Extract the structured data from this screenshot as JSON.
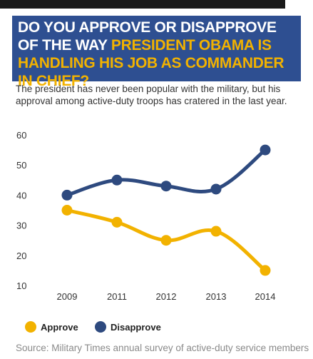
{
  "headline": {
    "part1": "DO YOU APPROVE OR DISAPPROVE OF THE WAY ",
    "part2": "PRESIDENT OBAMA IS HANDLING HIS JOB AS COMMANDER IN CHIEF?"
  },
  "subtitle": "The president has never been popular with the military, but his approval among active-duty troops has cratered in the last year.",
  "source": "Source: Military Times annual survey of active-duty service members",
  "colors": {
    "headline_bg": "#2e4f91",
    "highlight": "#f2b200",
    "approve": "#f2b200",
    "disapprove": "#2e4a7f"
  },
  "chart_data": {
    "type": "line",
    "categories": [
      "2009",
      "2011",
      "2012",
      "2013",
      "2014"
    ],
    "series": [
      {
        "name": "Approve",
        "color": "#f2b200",
        "values": [
          35,
          31,
          25,
          28,
          15
        ]
      },
      {
        "name": "Disapprove",
        "color": "#2e4a7f",
        "values": [
          40,
          45,
          43,
          42,
          55
        ]
      }
    ],
    "yticks": [
      "60",
      "50",
      "40",
      "30",
      "20",
      "10"
    ],
    "ylim": [
      10,
      60
    ],
    "grid": false,
    "legend": "bottom-left"
  }
}
